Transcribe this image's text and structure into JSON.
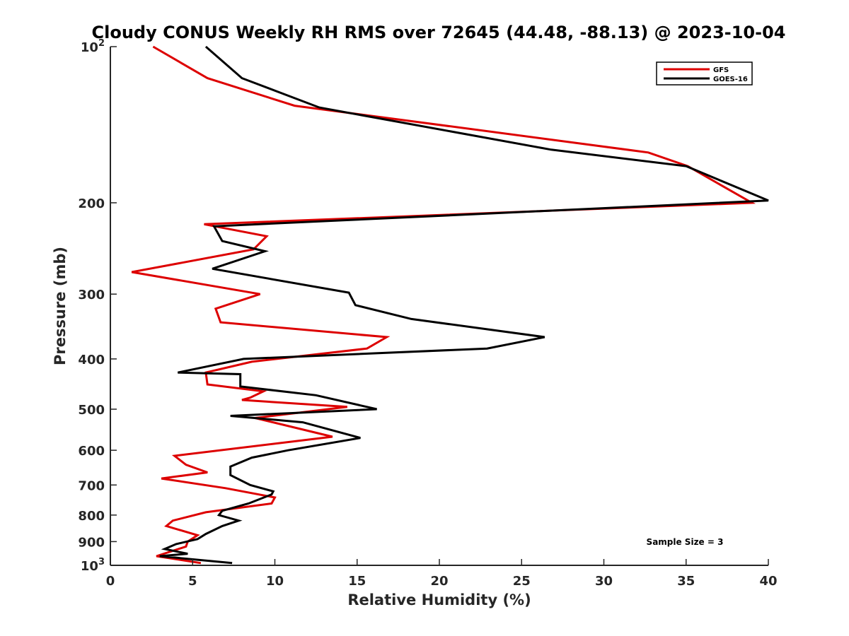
{
  "chart_data": {
    "type": "line",
    "title": "Cloudy CONUS Weekly RH RMS over 72645 (44.48, -88.13) @ 2023-10-04",
    "xlabel": "Relative Humidity (%)",
    "ylabel": "Pressure (mb)",
    "xlim": [
      0,
      40
    ],
    "ylim": [
      100,
      1000
    ],
    "yscale": "log",
    "y_reversed": true,
    "grid": false,
    "legend_position": "top-right",
    "x_ticks": [
      "0",
      "5",
      "10",
      "15",
      "20",
      "25",
      "30",
      "35",
      "40"
    ],
    "x_tick_values": [
      0,
      5,
      10,
      15,
      20,
      25,
      30,
      35,
      40
    ],
    "y_ticks": [
      {
        "value": 100,
        "base": "10",
        "exp": "2"
      },
      {
        "value": 200,
        "label": "200"
      },
      {
        "value": 300,
        "label": "300"
      },
      {
        "value": 400,
        "label": "400"
      },
      {
        "value": 500,
        "label": "500"
      },
      {
        "value": 600,
        "label": "600"
      },
      {
        "value": 700,
        "label": "700"
      },
      {
        "value": 800,
        "label": "800"
      },
      {
        "value": 900,
        "label": "900"
      },
      {
        "value": 1000,
        "base": "10",
        "exp": "3"
      }
    ],
    "series": [
      {
        "name": "GFS",
        "color": "#dd0000",
        "x": [
          2.6,
          5.9,
          11.2,
          32.7,
          35.1,
          39.0,
          5.7,
          9.5,
          8.7,
          1.3,
          9.1,
          6.4,
          6.7,
          16.8,
          15.6,
          8.6,
          5.8,
          5.9,
          9.3,
          8.5,
          8.0,
          14.4,
          8.8,
          13.5,
          3.9,
          4.6,
          5.9,
          3.1,
          7.0,
          10.0,
          9.8,
          5.8,
          3.8,
          3.4,
          5.3,
          4.7,
          4.6,
          2.8,
          5.5
        ],
        "y": [
          100,
          115,
          130,
          160,
          170,
          200,
          220,
          232,
          246,
          272,
          300,
          320,
          340,
          363,
          382,
          405,
          425,
          448,
          462,
          475,
          480,
          495,
          520,
          565,
          615,
          640,
          662,
          680,
          710,
          740,
          760,
          790,
          820,
          840,
          875,
          900,
          920,
          960,
          990
        ]
      },
      {
        "name": "GOES-16",
        "color": "#000000",
        "x": [
          5.8,
          8.0,
          12.7,
          26.8,
          35.0,
          40.0,
          6.3,
          6.8,
          9.4,
          6.2,
          14.5,
          14.9,
          18.3,
          26.4,
          22.9,
          8.1,
          4.1,
          7.9,
          7.9,
          12.5,
          16.2,
          7.3,
          11.7,
          15.2,
          10.8,
          8.6,
          7.3,
          7.3,
          8.5,
          9.9,
          9.8,
          8.4,
          6.8,
          6.6,
          7.8,
          6.8,
          5.8,
          5.3,
          4.0,
          3.3,
          4.7,
          3.0,
          7.4
        ],
        "y": [
          100,
          115,
          131,
          158,
          170,
          198,
          222,
          237,
          248,
          268,
          298,
          315,
          335,
          363,
          382,
          400,
          425,
          428,
          452,
          470,
          500,
          515,
          530,
          568,
          600,
          620,
          645,
          670,
          700,
          720,
          730,
          760,
          785,
          800,
          820,
          840,
          870,
          890,
          910,
          930,
          950,
          960,
          990
        ]
      }
    ],
    "annotations": [
      {
        "text": "Sample Size = 3"
      }
    ]
  }
}
